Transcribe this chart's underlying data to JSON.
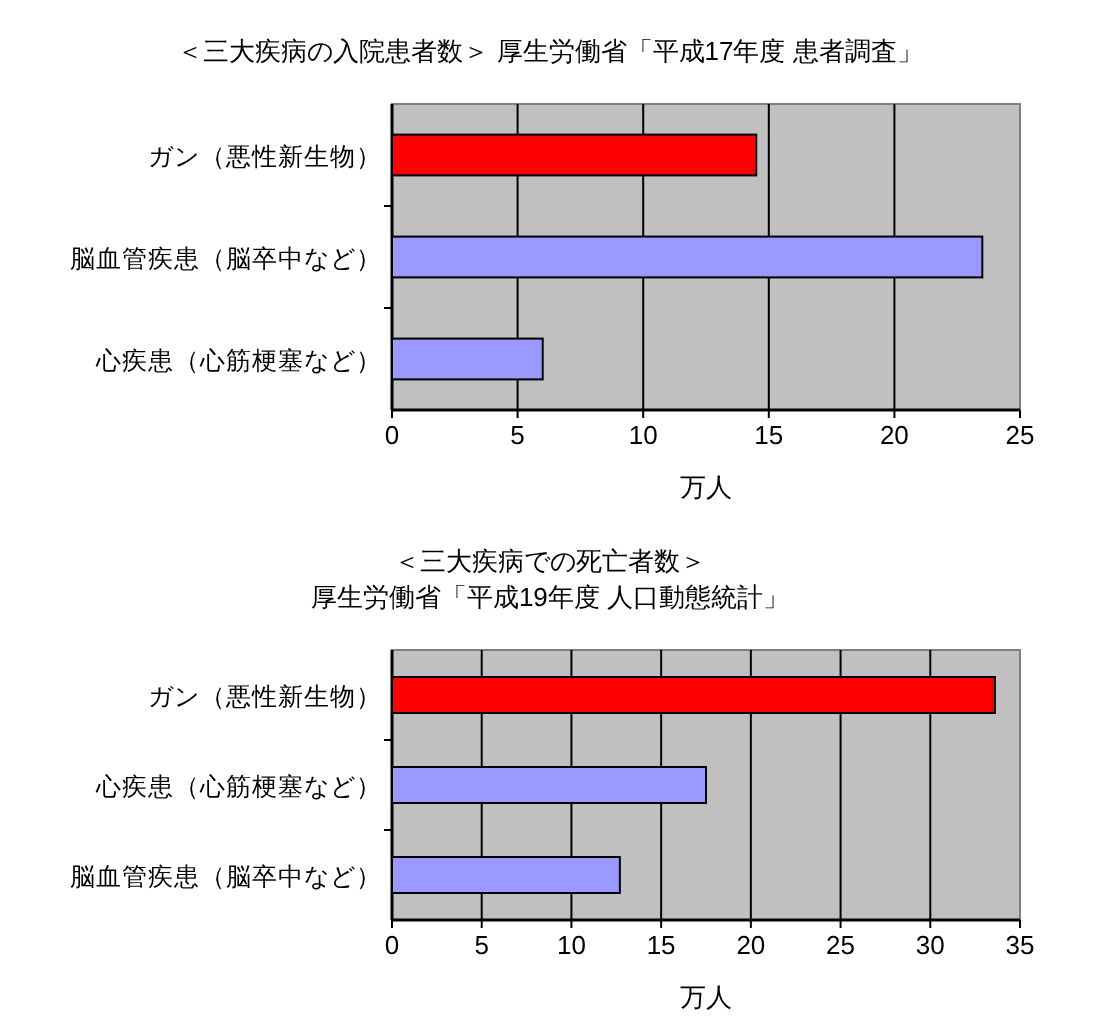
{
  "chart_data": [
    {
      "type": "bar",
      "orientation": "horizontal",
      "title": "＜三大疾病の入院患者数＞ 厚生労働省「平成17年度 患者調査」",
      "xlabel": "万人",
      "categories": [
        "ガン（悪性新生物）",
        "脳血管疾患（脳卒中など）",
        "心疾患（心筋梗塞など）"
      ],
      "values": [
        14.5,
        23.5,
        6.0
      ],
      "colors": [
        "#ff0000",
        "#9999ff",
        "#9999ff"
      ],
      "xlim": [
        0,
        25
      ],
      "xticks": [
        0,
        5,
        10,
        15,
        20,
        25
      ],
      "grid": "x"
    },
    {
      "type": "bar",
      "orientation": "horizontal",
      "title": "＜三大疾病での死亡者数＞",
      "subtitle": "厚生労働省「平成19年度 人口動態統計」",
      "xlabel": "万人",
      "categories": [
        "ガン（悪性新生物）",
        "心疾患（心筋梗塞など）",
        "脳血管疾患（脳卒中など）"
      ],
      "values": [
        33.6,
        17.5,
        12.7
      ],
      "colors": [
        "#ff0000",
        "#9999ff",
        "#9999ff"
      ],
      "xlim": [
        0,
        35
      ],
      "xticks": [
        0,
        5,
        10,
        15,
        20,
        25,
        30,
        35
      ],
      "grid": "x"
    }
  ]
}
